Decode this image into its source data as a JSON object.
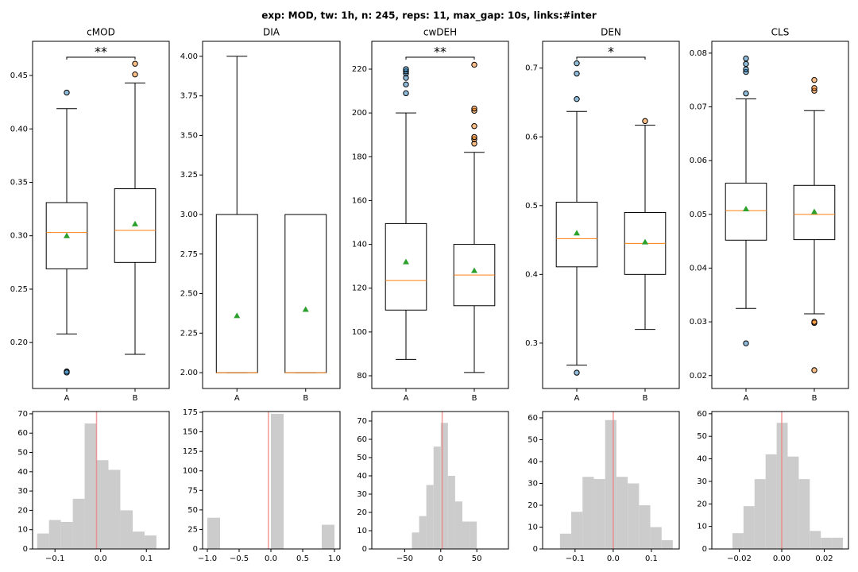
{
  "title": "exp: MOD, tw: 1h, n: 245, reps: 11, max_gap: 10s, links:#inter",
  "chart_data": [
    {
      "type": "box",
      "title": "cMOD",
      "categories": [
        "A",
        "B"
      ],
      "significance": "**",
      "ylim": [
        0.157,
        0.482
      ],
      "yticks": [
        {
          "value": 0.2,
          "label": "0.20"
        },
        0.25,
        {
          "value": 0.3,
          "label": "0.30"
        },
        0.35,
        {
          "value": 0.4,
          "label": "0.40"
        },
        0.45
      ],
      "boxes": [
        {
          "whislo": 0.208,
          "q1": 0.269,
          "med": 0.303,
          "q3": 0.331,
          "whishi": 0.419,
          "mean": 0.3,
          "fliers": [
            0.434,
            0.173,
            0.172
          ]
        },
        {
          "whislo": 0.189,
          "q1": 0.275,
          "med": 0.305,
          "q3": 0.344,
          "whishi": 0.443,
          "mean": 0.311,
          "fliers": [
            0.451,
            0.461
          ]
        }
      ]
    },
    {
      "type": "box",
      "title": "DIA",
      "categories": [
        "A",
        "B"
      ],
      "ylim": [
        1.9,
        4.095
      ],
      "yticks": [
        {
          "value": 2,
          "label": "2.00"
        },
        2.25,
        {
          "value": 2.5,
          "label": "2.50"
        },
        2.75,
        {
          "value": 3,
          "label": "3.00"
        },
        3.25,
        {
          "value": 3.5,
          "label": "3.50"
        },
        3.75,
        {
          "value": 4,
          "label": "4.00"
        }
      ],
      "boxes": [
        {
          "whislo": 2,
          "q1": 2,
          "med": 2,
          "q3": 3,
          "whishi": 4,
          "mean": 2.36,
          "fliers": []
        },
        {
          "whislo": 2,
          "q1": 2,
          "med": 2,
          "q3": 3,
          "whishi": 3,
          "mean": 2.4,
          "fliers": []
        }
      ]
    },
    {
      "type": "box",
      "title": "cwDEH",
      "categories": [
        "A",
        "B"
      ],
      "significance": "**",
      "ylim": [
        74.2,
        232.7
      ],
      "yticks": [
        80,
        100,
        120,
        140,
        160,
        180,
        200,
        220
      ],
      "boxes": [
        {
          "whislo": 87.5,
          "q1": 110,
          "med": 123.5,
          "q3": 149.5,
          "whishi": 200,
          "mean": 132,
          "fliers": [
            209,
            213,
            216,
            218,
            219,
            220
          ]
        },
        {
          "whislo": 81.5,
          "q1": 112,
          "med": 126,
          "q3": 140,
          "whishi": 182,
          "mean": 128,
          "fliers": [
            186,
            188,
            189,
            194,
            201,
            202,
            222
          ]
        }
      ]
    },
    {
      "type": "box",
      "title": "DEN",
      "categories": [
        "A",
        "B"
      ],
      "significance": "*",
      "ylim": [
        0.234,
        0.739
      ],
      "yticks": [
        0.3,
        0.4,
        0.5,
        0.6,
        0.7
      ],
      "boxes": [
        {
          "whislo": 0.268,
          "q1": 0.411,
          "med": 0.452,
          "q3": 0.505,
          "whishi": 0.637,
          "mean": 0.46,
          "fliers": [
            0.655,
            0.692,
            0.707,
            0.257
          ]
        },
        {
          "whislo": 0.32,
          "q1": 0.4,
          "med": 0.445,
          "q3": 0.49,
          "whishi": 0.617,
          "mean": 0.447,
          "fliers": [
            0.623
          ]
        }
      ]
    },
    {
      "type": "box",
      "title": "CLS",
      "categories": [
        "A",
        "B"
      ],
      "ylim": [
        0.0176,
        0.0822
      ],
      "yticks": [
        0.02,
        0.03,
        0.04,
        0.05,
        0.06,
        0.07,
        0.08
      ],
      "boxes": [
        {
          "whislo": 0.0325,
          "q1": 0.0452,
          "med": 0.0507,
          "q3": 0.0558,
          "whishi": 0.0715,
          "mean": 0.051,
          "fliers": [
            0.026,
            0.0725,
            0.0765,
            0.077,
            0.078,
            0.079
          ]
        },
        {
          "whislo": 0.0315,
          "q1": 0.0453,
          "med": 0.05,
          "q3": 0.0554,
          "whishi": 0.0693,
          "mean": 0.0505,
          "fliers": [
            0.0298,
            0.03,
            0.021,
            0.073,
            0.0735,
            0.075
          ]
        }
      ]
    },
    {
      "type": "histogram",
      "color": "#cccccc",
      "vline": -0.009,
      "bins": [
        -0.139,
        -0.113,
        -0.087,
        -0.061,
        -0.035,
        -0.009,
        0.017,
        0.043,
        0.07,
        0.096,
        0.122
      ],
      "counts": [
        8,
        15,
        14,
        26,
        65,
        46,
        41,
        20,
        9,
        7
      ],
      "xlim": [
        -0.149,
        0.15
      ],
      "xticks": [
        {
          "value": -0.1,
          "label": "−0.1"
        },
        {
          "value": 0,
          "label": "0.0"
        },
        0.1
      ],
      "ylim": [
        0,
        71.2
      ],
      "yticks": [
        0,
        10,
        20,
        30,
        40,
        50,
        60,
        70
      ]
    },
    {
      "type": "histogram",
      "color": "#cccccc",
      "vline": -0.04,
      "bins": [
        -1,
        -0.8,
        -0.6,
        -0.4,
        -0.2,
        0,
        0.2,
        0.4,
        0.6,
        0.8,
        1
      ],
      "counts": [
        40,
        0,
        0,
        0,
        0,
        173,
        0,
        0,
        0,
        31
      ],
      "xlim": [
        -1.075,
        1.0875
      ],
      "xticks": [
        {
          "value": -1,
          "label": "−1.0"
        },
        {
          "value": -0.5,
          "label": "−0.5"
        },
        {
          "value": 0,
          "label": "0.0"
        },
        0.5,
        {
          "value": 1,
          "label": "1.0"
        }
      ],
      "ylim": [
        0,
        176
      ],
      "yticks": [
        0,
        25,
        50,
        75,
        100,
        125,
        150,
        175
      ]
    },
    {
      "type": "histogram",
      "color": "#cccccc",
      "vline": 2,
      "bins": [
        -40,
        -30,
        -20,
        -10,
        0,
        10,
        20,
        30,
        40,
        50
      ],
      "counts": [
        9,
        18,
        35,
        56,
        69,
        40,
        26,
        15,
        15
      ],
      "xlim": [
        -95.6,
        93.9
      ],
      "xticks": [
        {
          "value": -50,
          "label": "−50"
        },
        0,
        50
      ],
      "ylim": [
        0,
        75.2
      ],
      "yticks": [
        0,
        10,
        20,
        30,
        40,
        50,
        60,
        70
      ]
    },
    {
      "type": "histogram",
      "color": "#cccccc",
      "vline": 0,
      "bins": [
        -0.1396,
        -0.11,
        -0.0804,
        -0.0508,
        -0.0212,
        0.0084,
        0.038,
        0.0676,
        0.0972,
        0.1268,
        0.156
      ],
      "counts": [
        7,
        17,
        33,
        32,
        59,
        33,
        30,
        20,
        10,
        4
      ],
      "xlim": [
        -0.185,
        0.173
      ],
      "xticks": [
        {
          "value": -0.1,
          "label": "−0.1"
        },
        {
          "value": 0,
          "label": "0.0"
        },
        0.1
      ],
      "ylim": [
        0,
        62.9
      ],
      "yticks": [
        0,
        10,
        20,
        30,
        40,
        50,
        60
      ]
    },
    {
      "type": "histogram",
      "color": "#cccccc",
      "vline": 0,
      "bins": [
        -0.0232,
        -0.018,
        -0.0128,
        -0.0076,
        -0.0024,
        0.0028,
        0.008,
        0.0132,
        0.0184,
        0.0236,
        0.0288
      ],
      "counts": [
        7,
        19,
        31,
        42,
        56,
        41,
        31,
        8,
        5,
        5
      ],
      "xlim": [
        -0.0329,
        0.0314
      ],
      "xticks": [
        {
          "value": -0.02,
          "label": "−0.02"
        },
        {
          "value": 0,
          "label": "0.00"
        },
        0.02
      ],
      "ylim": [
        0,
        61
      ],
      "yticks": [
        0,
        10,
        20,
        30,
        40,
        50,
        60
      ]
    }
  ]
}
